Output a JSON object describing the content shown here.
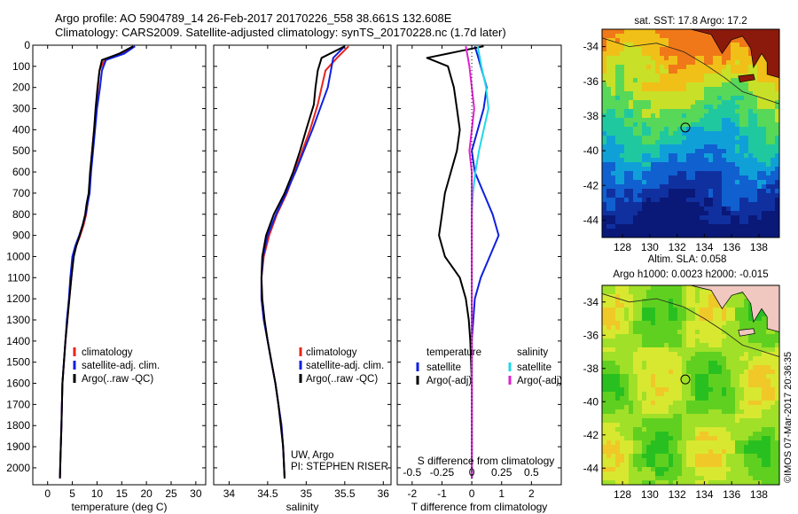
{
  "header": {
    "line1": "Argo profile: AO 5904789_14 26-Feb-2017 20170226_558 38.661S 132.608E",
    "line2": "Climatology: CARS2009. Satellite-adjusted climatology: synTS_20170228.nc (1.7d later)"
  },
  "credit": "©IMOS 07-Mar-2017 20:36:35",
  "colors": {
    "climatology": "#e8241a",
    "satellite": "#1020e0",
    "argo": "#000000",
    "argo_salinity_diff": "#e020d0",
    "satellite_salinity_diff": "#20d8e8"
  },
  "chart_data": [
    {
      "type": "line",
      "xlabel": "temperature (deg C)",
      "ylabel": "",
      "xticks": [
        0,
        5,
        10,
        15,
        20,
        25,
        30
      ],
      "xlim": [
        -3,
        32
      ],
      "ylim": [
        2080,
        0
      ],
      "yticks": [
        0,
        100,
        200,
        300,
        400,
        500,
        600,
        700,
        800,
        900,
        1000,
        1100,
        1200,
        1300,
        1400,
        1500,
        1600,
        1700,
        1800,
        1900,
        2000
      ],
      "legend": [
        "climatology",
        "satellite-adj. clim.",
        "Argo(..raw -QC)"
      ],
      "legend_position": "lower-middle",
      "series": [
        {
          "name": "climatology",
          "color_key": "climatology",
          "x": [
            17.6,
            15.0,
            11.5,
            10.5,
            10.2,
            9.8,
            9.4,
            9.0,
            8.7,
            8.4,
            8.1,
            7.8,
            7.3,
            6.6,
            5.8,
            5.2,
            4.8,
            4.4,
            4.0,
            3.6,
            3.3,
            3.0,
            2.8,
            2.6,
            2.5
          ],
          "y": [
            5,
            40,
            70,
            120,
            200,
            300,
            400,
            500,
            600,
            700,
            750,
            800,
            850,
            900,
            950,
            1000,
            1100,
            1200,
            1300,
            1400,
            1500,
            1600,
            1800,
            1950,
            2050
          ]
        },
        {
          "name": "satellite-adj. clim.",
          "color_key": "satellite",
          "x": [
            17.7,
            15.5,
            11.8,
            11.0,
            10.6,
            10.0,
            9.6,
            9.2,
            8.8,
            8.5,
            8.1,
            7.7,
            7.1,
            6.4,
            5.6,
            5.0,
            4.6,
            4.3,
            3.9,
            3.6,
            3.3,
            3.0,
            2.8,
            2.6,
            2.5
          ],
          "y": [
            5,
            40,
            70,
            120,
            200,
            300,
            400,
            500,
            600,
            700,
            750,
            800,
            850,
            900,
            950,
            1000,
            1100,
            1200,
            1300,
            1400,
            1500,
            1600,
            1800,
            1950,
            2050
          ]
        },
        {
          "name": "Argo(..raw -QC)",
          "color_key": "argo",
          "x": [
            17.3,
            14.5,
            11.0,
            10.5,
            10.1,
            9.7,
            9.4,
            9.0,
            8.6,
            8.3,
            7.9,
            7.6,
            7.1,
            6.5,
            5.8,
            5.3,
            4.8,
            4.4,
            4.0,
            3.6,
            3.3,
            3.0,
            2.8,
            2.6,
            2.5
          ],
          "y": [
            5,
            40,
            70,
            120,
            200,
            300,
            400,
            500,
            600,
            700,
            750,
            800,
            850,
            900,
            950,
            1000,
            1100,
            1200,
            1300,
            1400,
            1500,
            1600,
            1800,
            1950,
            2050
          ]
        }
      ]
    },
    {
      "type": "line",
      "xlabel": "salinity",
      "ylabel": "",
      "xticks": [
        34,
        34.5,
        35,
        35.5,
        36
      ],
      "xtick_labels": [
        "34",
        "34.5",
        "35",
        "35.5",
        "36"
      ],
      "xlim": [
        33.8,
        36.1
      ],
      "ylim": [
        2080,
        0
      ],
      "legend": [
        "climatology",
        "satellite-adj. clim.",
        "Argo(..raw -QC)"
      ],
      "legend_position": "lower-middle",
      "annotation": [
        "UW, Argo",
        "PI: STEPHEN RISER"
      ],
      "series": [
        {
          "name": "climatology",
          "color_key": "climatology",
          "x": [
            35.55,
            35.4,
            35.25,
            35.2,
            35.15,
            35.05,
            34.95,
            34.85,
            34.75,
            34.62,
            34.52,
            34.45,
            34.42,
            34.42,
            34.45,
            34.5,
            34.55,
            34.6,
            34.64,
            34.68,
            34.7,
            34.72
          ],
          "y": [
            5,
            60,
            120,
            200,
            280,
            400,
            500,
            600,
            700,
            800,
            900,
            1000,
            1100,
            1200,
            1300,
            1400,
            1500,
            1600,
            1700,
            1800,
            1900,
            2050
          ]
        },
        {
          "name": "satellite-adj. clim.",
          "color_key": "satellite",
          "x": [
            35.5,
            35.35,
            35.32,
            35.28,
            35.2,
            35.08,
            34.97,
            34.86,
            34.74,
            34.61,
            34.5,
            34.44,
            34.42,
            34.42,
            34.45,
            34.5,
            34.55,
            34.6,
            34.64,
            34.68,
            34.7,
            34.72
          ],
          "y": [
            5,
            60,
            120,
            200,
            280,
            400,
            500,
            600,
            700,
            800,
            900,
            1000,
            1100,
            1200,
            1300,
            1400,
            1500,
            1600,
            1700,
            1800,
            1900,
            2050
          ]
        },
        {
          "name": "Argo(..raw -QC)",
          "color_key": "argo",
          "x": [
            35.5,
            35.2,
            35.15,
            35.12,
            35.1,
            35.0,
            34.92,
            34.83,
            34.72,
            34.58,
            34.48,
            34.43,
            34.42,
            34.43,
            34.46,
            34.5,
            34.55,
            34.6,
            34.64,
            34.67,
            34.7,
            34.72
          ],
          "y": [
            5,
            60,
            120,
            200,
            280,
            400,
            500,
            600,
            700,
            800,
            900,
            1000,
            1100,
            1200,
            1300,
            1400,
            1500,
            1600,
            1700,
            1800,
            1900,
            2050
          ]
        }
      ]
    },
    {
      "type": "line",
      "xlabel": "T difference from climatology",
      "xlabel_top": "S difference from climatology",
      "xticks": [
        -2,
        -1,
        0,
        1,
        2
      ],
      "xlim": [
        -2.5,
        3.0
      ],
      "xticks_salinity": [
        -0.5,
        -0.25,
        0,
        0.25,
        0.5
      ],
      "xtick_labels_salinity": [
        "-0.5",
        "-0.25",
        "0",
        "0.25",
        "0.5"
      ],
      "ylim": [
        2080,
        0
      ],
      "legend_temperature": {
        "title": "temperature",
        "entries": [
          "satellite",
          "Argo(-adj)"
        ]
      },
      "legend_salinity": {
        "title": "salinity",
        "entries": [
          "satellite",
          "Argo(-adj)"
        ]
      },
      "series": [
        {
          "name": "satellite",
          "color_key": "satellite",
          "x": [
            0.1,
            0.2,
            0.3,
            0.5,
            0.4,
            0.2,
            0.0,
            0.1,
            0.4,
            0.7,
            0.9,
            0.6,
            0.3,
            0.1,
            0.05,
            0.0,
            0.0,
            0.0,
            0.0
          ],
          "y": [
            5,
            50,
            100,
            200,
            300,
            400,
            500,
            600,
            700,
            800,
            900,
            1000,
            1100,
            1200,
            1300,
            1400,
            1600,
            1800,
            2050
          ]
        },
        {
          "name": "Argo(-adj)",
          "color_key": "argo",
          "x": [
            0.4,
            -1.5,
            -0.8,
            -0.6,
            -0.5,
            -0.4,
            -0.5,
            -0.7,
            -0.9,
            -1.0,
            -1.1,
            -0.9,
            -0.4,
            -0.2,
            -0.1,
            -0.05,
            0.0,
            0.0,
            0.0
          ],
          "y": [
            5,
            60,
            100,
            200,
            300,
            400,
            500,
            600,
            700,
            800,
            900,
            1000,
            1100,
            1200,
            1300,
            1400,
            1600,
            1800,
            2050
          ]
        },
        {
          "name": "satellite",
          "color_key": "satellite_salinity_diff",
          "x": [
            0.05,
            0.08,
            0.12,
            0.14,
            0.1,
            0.06,
            0.03,
            0.01,
            0.0,
            0.0,
            0.0,
            0.0,
            0.0,
            0.0,
            0.0
          ],
          "y": [
            5,
            100,
            200,
            300,
            400,
            500,
            600,
            700,
            800,
            1000,
            1200,
            1400,
            1600,
            1800,
            2050
          ]
        },
        {
          "name": "Argo(-adj)",
          "color_key": "argo_salinity_diff",
          "x": [
            -0.05,
            -0.02,
            0.0,
            0.02,
            0.0,
            -0.02,
            0.0,
            0.0,
            0.0,
            0.0,
            0.0,
            0.0,
            0.0,
            0.0,
            0.0
          ],
          "y": [
            5,
            100,
            200,
            300,
            400,
            500,
            600,
            700,
            800,
            1000,
            1200,
            1400,
            1600,
            1800,
            2050
          ]
        }
      ]
    },
    {
      "type": "heatmap",
      "title": "sat. SST: 17.8  Argo: 17.2",
      "xticks": [
        128,
        130,
        132,
        134,
        136,
        138
      ],
      "yticks": [
        -34,
        -36,
        -38,
        -40,
        -42,
        -44
      ],
      "xlim": [
        126.5,
        139.5
      ],
      "ylim": [
        -45,
        -33
      ],
      "marker": {
        "lon": 132.608,
        "lat": -38.661
      },
      "colors": [
        "#8b1a0c",
        "#d83010",
        "#f07818",
        "#f0c018",
        "#c8e028",
        "#58d858",
        "#20c8a0",
        "#10a0d8",
        "#1060d0",
        "#1030a0",
        "#0a1878"
      ],
      "land_color": "#f0c8c0"
    },
    {
      "type": "heatmap",
      "title": "Altim. SLA: 0.058",
      "subtitle": "Argo h1000: 0.0023 h2000: -0.015",
      "xticks": [
        128,
        130,
        132,
        134,
        136,
        138
      ],
      "yticks": [
        -34,
        -36,
        -38,
        -40,
        -42,
        -44
      ],
      "xlim": [
        126.5,
        139.5
      ],
      "ylim": [
        -45,
        -33
      ],
      "marker": {
        "lon": 132.608,
        "lat": -38.661
      },
      "colors": [
        "#28c020",
        "#60d020",
        "#a0e028",
        "#d8e830",
        "#f0c828"
      ],
      "land_color": "#f0c8c0"
    }
  ]
}
